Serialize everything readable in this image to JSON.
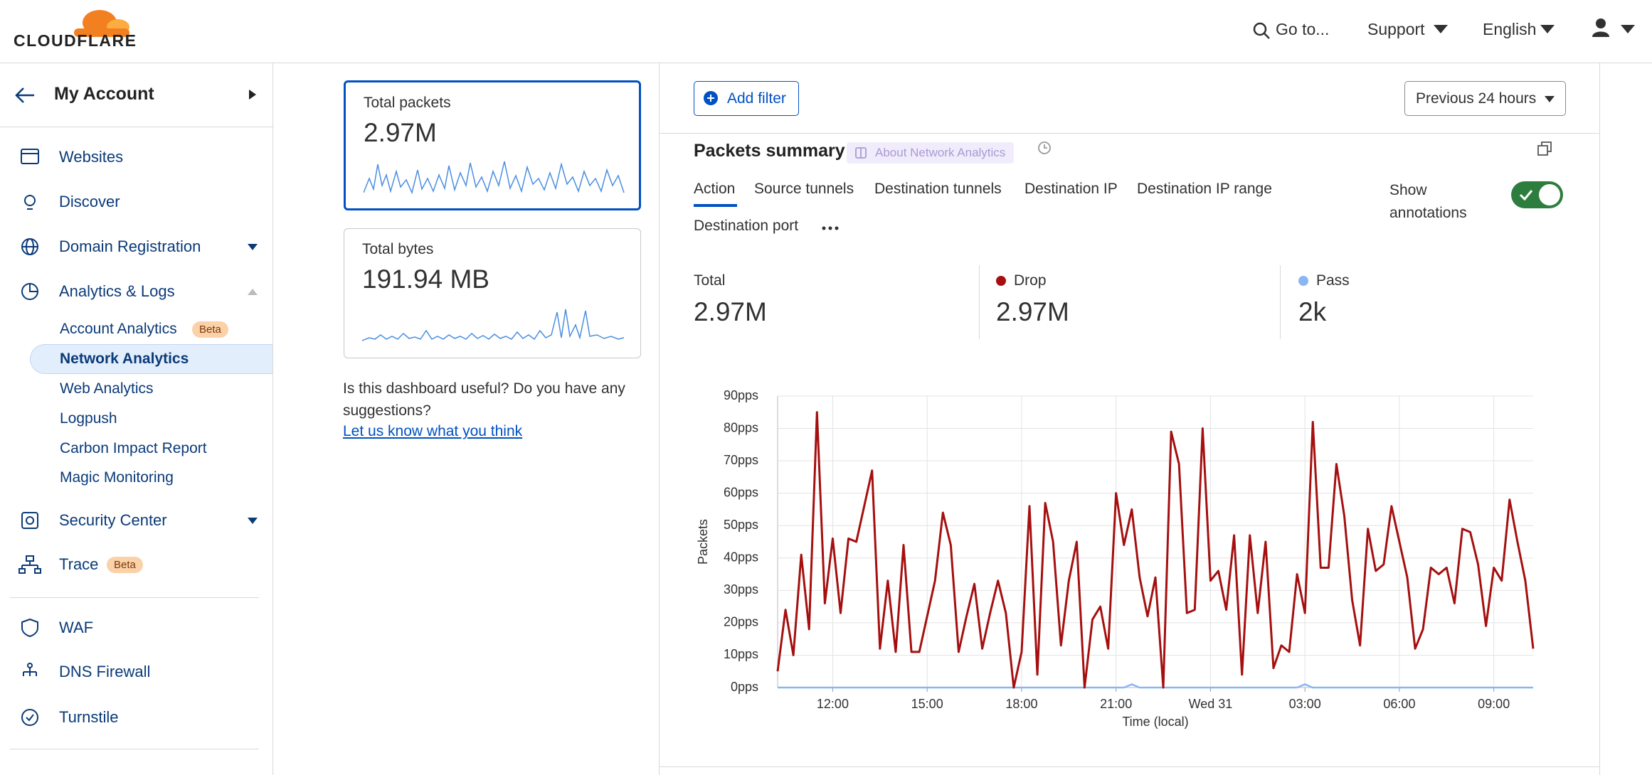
{
  "header": {
    "logo": "CLOUDFLARE",
    "goto": "Go to...",
    "support": "Support",
    "language": "English"
  },
  "sidebar": {
    "account": "My Account",
    "items": [
      "Websites",
      "Discover",
      "Domain Registration",
      "Analytics & Logs"
    ],
    "analytics_items": [
      "Account Analytics",
      "Network Analytics",
      "Web Analytics",
      "Logpush",
      "Carbon Impact Report",
      "Magic Monitoring"
    ],
    "items2": [
      "Security Center",
      "Trace"
    ],
    "items3": [
      "WAF",
      "DNS Firewall",
      "Turnstile"
    ],
    "badge": "Beta"
  },
  "cards": [
    {
      "title": "Total packets",
      "value": "2.97M"
    },
    {
      "title": "Total bytes",
      "value": "191.94 MB"
    }
  ],
  "feedback": {
    "question": "Is this dashboard useful? Do you have any suggestions?",
    "link": "Let us know what you think"
  },
  "toolbar": {
    "add_filter": "Add filter",
    "time_range": "Previous 24 hours"
  },
  "summary": {
    "title": "Packets summary",
    "about": "About Network Analytics",
    "tabs": [
      "Action",
      "Source tunnels",
      "Destination tunnels",
      "Destination IP",
      "Destination IP range",
      "Destination port"
    ],
    "show_annotations": "Show annotations",
    "stats": [
      {
        "label": "Total",
        "value": "2.97M"
      },
      {
        "label": "Drop",
        "value": "2.97M"
      },
      {
        "label": "Pass",
        "value": "2k"
      }
    ]
  },
  "chart_data": {
    "type": "line",
    "xlabel": "Time (local)",
    "ylabel": "Packets",
    "grid": true,
    "x": [
      10.25,
      10.5,
      10.75,
      11,
      11.25,
      11.5,
      11.75,
      12,
      12.25,
      12.5,
      12.75,
      13,
      13.25,
      13.5,
      13.75,
      14,
      14.25,
      14.5,
      14.75,
      15,
      15.25,
      15.5,
      15.75,
      16,
      16.25,
      16.5,
      16.75,
      17,
      17.25,
      17.5,
      17.75,
      18,
      18.25,
      18.5,
      18.75,
      19,
      19.25,
      19.5,
      19.75,
      20,
      20.25,
      20.5,
      20.75,
      21,
      21.25,
      21.5,
      21.75,
      22,
      22.25,
      22.5,
      22.75,
      23,
      23.25,
      23.5,
      23.75,
      24,
      24.25,
      24.5,
      24.75,
      25,
      25.25,
      25.5,
      25.75,
      26,
      26.25,
      26.5,
      26.75,
      27,
      27.25,
      27.5,
      27.75,
      28,
      28.25,
      28.5,
      28.75,
      29,
      29.25,
      29.5,
      29.75,
      30,
      30.25,
      30.5,
      30.75,
      31,
      31.25,
      31.5,
      31.75,
      32,
      32.25,
      32.5,
      32.75,
      33,
      33.25,
      33.5,
      33.75,
      34,
      34.25
    ],
    "series": [
      {
        "name": "Drop",
        "color": "#a50f0f",
        "values": [
          5,
          24,
          10,
          41,
          18,
          85,
          26,
          46,
          23,
          46,
          45,
          56,
          67,
          12,
          33,
          11,
          44,
          11,
          11,
          22,
          33,
          54,
          44,
          11,
          22,
          32,
          12,
          23,
          33,
          23,
          0,
          11,
          56,
          4,
          57,
          45,
          13,
          33,
          45,
          0,
          21,
          25,
          12,
          60,
          44,
          55,
          34,
          22,
          34,
          0,
          79,
          69,
          23,
          24,
          80,
          33,
          36,
          24,
          47,
          4,
          47,
          23,
          45,
          6,
          13,
          11,
          35,
          23,
          82,
          37,
          37,
          69,
          53,
          27,
          13,
          49,
          36,
          38,
          56,
          45,
          34,
          12,
          18,
          37,
          35,
          37,
          26,
          49,
          48,
          38,
          19,
          37,
          33,
          58,
          45,
          33,
          12
        ]
      },
      {
        "name": "Pass",
        "color": "#8ab6f5",
        "values": [
          0,
          0,
          0,
          0,
          0,
          0,
          0,
          0,
          0,
          0,
          0,
          0,
          0,
          0,
          0,
          0,
          0,
          0,
          0,
          0,
          0,
          0,
          0,
          0,
          0,
          0,
          0,
          0,
          0,
          0,
          0,
          0,
          0,
          0,
          0,
          0,
          0,
          0,
          0,
          0,
          0,
          0,
          0,
          0,
          0,
          1,
          0,
          0,
          0,
          0,
          0,
          0,
          0,
          0,
          0,
          0,
          0,
          0,
          0,
          0,
          0,
          0,
          0,
          0,
          0,
          0,
          0,
          1,
          0,
          0,
          0,
          0,
          0,
          0,
          0,
          0,
          0,
          0,
          0,
          0,
          0,
          0,
          0,
          0,
          0,
          0,
          0,
          0,
          0,
          0,
          0,
          0,
          0,
          0,
          0,
          0,
          0
        ]
      }
    ],
    "xlim": [
      10.25,
      34.25
    ],
    "xticks": [
      {
        "value": 12,
        "label": "12:00"
      },
      {
        "value": 15,
        "label": "15:00"
      },
      {
        "value": 18,
        "label": "18:00"
      },
      {
        "value": 21,
        "label": "21:00"
      },
      {
        "value": 24,
        "label": "Wed 31"
      },
      {
        "value": 27,
        "label": "03:00"
      },
      {
        "value": 30,
        "label": "06:00"
      },
      {
        "value": 33,
        "label": "09:00"
      }
    ],
    "ylim": [
      0,
      90
    ],
    "yticks": [
      {
        "value": 0,
        "label": "0pps"
      },
      {
        "value": 10,
        "label": "10pps"
      },
      {
        "value": 20,
        "label": "20pps"
      },
      {
        "value": 30,
        "label": "30pps"
      },
      {
        "value": 40,
        "label": "40pps"
      },
      {
        "value": 50,
        "label": "50pps"
      },
      {
        "value": 60,
        "label": "60pps"
      },
      {
        "value": 70,
        "label": "70pps"
      },
      {
        "value": 80,
        "label": "80pps"
      },
      {
        "value": 90,
        "label": "90pps"
      }
    ]
  }
}
